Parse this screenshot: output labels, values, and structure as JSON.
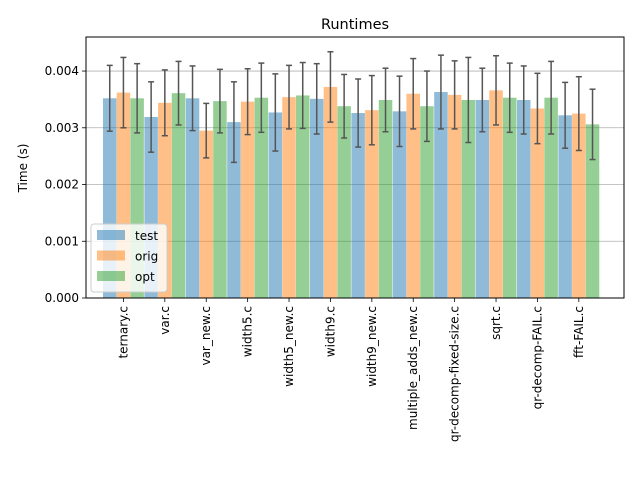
{
  "chart_data": {
    "type": "bar",
    "title": "Runtimes",
    "xlabel": "",
    "ylabel": "Time (s)",
    "ylim": [
      0,
      0.0046
    ],
    "yticks": [
      "0.000",
      "0.001",
      "0.002",
      "0.003",
      "0.004"
    ],
    "ytick_values": [
      0,
      0.001,
      0.002,
      0.003,
      0.004
    ],
    "grid": "horizontal",
    "legend_position": "lower-left",
    "categories": [
      "ternary.c",
      "var.c",
      "var_new.c",
      "width5.c",
      "width5_new.c",
      "width9.c",
      "width9_new.c",
      "multiple_adds_new.c",
      "qr-decomp-fixed-size.c",
      "sqrt.c",
      "qr-decomp-FAIL.c",
      "fft-FAIL.c"
    ],
    "series": [
      {
        "name": "test",
        "color": "#1f77b4",
        "values": [
          0.00352,
          0.00319,
          0.00352,
          0.0031,
          0.00327,
          0.00351,
          0.00326,
          0.00329,
          0.00363,
          0.00349,
          0.00349,
          0.00322
        ],
        "errors": [
          0.00058,
          0.00062,
          0.00057,
          0.00071,
          0.00068,
          0.00062,
          0.0006,
          0.00062,
          0.00065,
          0.00056,
          0.0006,
          0.00058
        ]
      },
      {
        "name": "orig",
        "color": "#ff7f0e",
        "values": [
          0.00362,
          0.00344,
          0.00295,
          0.00346,
          0.00354,
          0.00372,
          0.00331,
          0.0036,
          0.00358,
          0.00366,
          0.00334,
          0.00325
        ],
        "errors": [
          0.00062,
          0.00058,
          0.00048,
          0.00058,
          0.00056,
          0.00062,
          0.00061,
          0.00062,
          0.0006,
          0.00061,
          0.00062,
          0.00065
        ]
      },
      {
        "name": "opt",
        "color": "#2ca02c",
        "values": [
          0.00352,
          0.00361,
          0.00347,
          0.00353,
          0.00357,
          0.00338,
          0.00349,
          0.00338,
          0.00349,
          0.00353,
          0.00353,
          0.00306
        ],
        "errors": [
          0.00061,
          0.00056,
          0.00056,
          0.00061,
          0.00058,
          0.00056,
          0.00056,
          0.00062,
          0.00075,
          0.00061,
          0.00064,
          0.00062
        ]
      }
    ]
  }
}
